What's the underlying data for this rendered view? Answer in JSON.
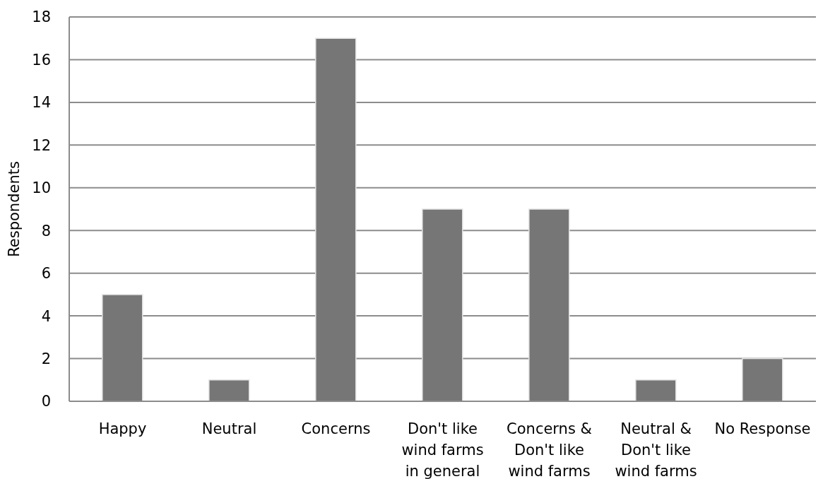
{
  "chart_data": {
    "type": "bar",
    "ylabel": "Respondents",
    "categories": [
      "Happy",
      "Neutral",
      "Concerns",
      "Don't like wind farms in general",
      "Concerns & Don't like wind farms",
      "Neutral & Don't like wind farms",
      "No Response"
    ],
    "values": [
      5,
      1,
      17,
      9,
      9,
      1,
      2
    ],
    "color": "#767676",
    "ylim": [
      0,
      18
    ],
    "yticks": [
      0,
      2,
      4,
      6,
      8,
      10,
      12,
      14,
      16,
      18
    ],
    "grid": "y"
  }
}
